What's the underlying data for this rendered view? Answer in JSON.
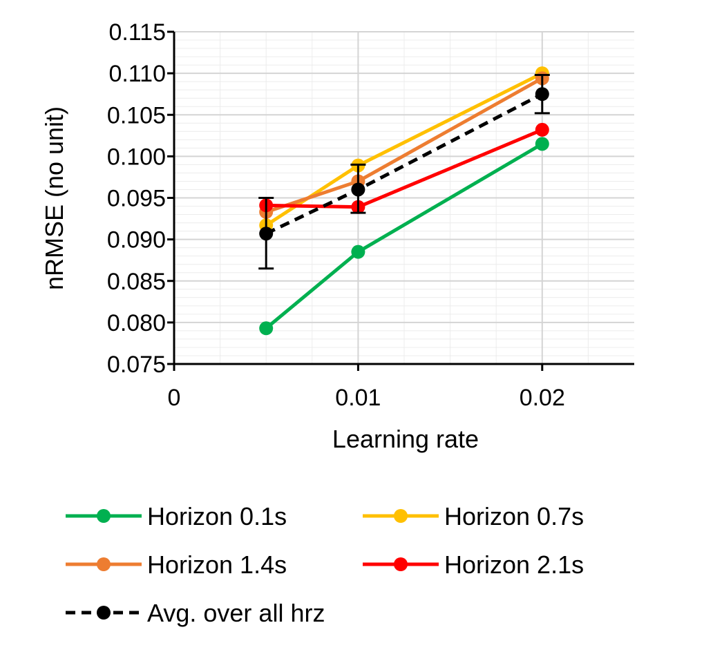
{
  "chart_data": {
    "type": "line",
    "title": "",
    "xlabel": "Learning rate",
    "ylabel": "nRMSE (no unit)",
    "xlim": [
      0,
      0.025
    ],
    "ylim": [
      0.075,
      0.115
    ],
    "x_ticks": [
      0,
      0.01,
      0.02
    ],
    "x_tick_labels": [
      "0",
      "0.01",
      "0.02"
    ],
    "y_ticks": [
      0.075,
      0.08,
      0.085,
      0.09,
      0.095,
      0.1,
      0.105,
      0.11,
      0.115
    ],
    "y_tick_labels": [
      "0.075",
      "0.080",
      "0.085",
      "0.090",
      "0.095",
      "0.100",
      "0.105",
      "0.110",
      "0.115"
    ],
    "x_minor_step": 0.0025,
    "y_minor_step": 0.001,
    "grid": true,
    "legend_position": "bottom",
    "x": [
      0.005,
      0.01,
      0.02
    ],
    "series": [
      {
        "name": "Horizon 0.1s",
        "color": "#00b050",
        "dashed": false,
        "values": [
          0.0793,
          0.0885,
          0.1015
        ]
      },
      {
        "name": "Horizon 0.7s",
        "color": "#ffc000",
        "dashed": false,
        "values": [
          0.0917,
          0.0989,
          0.11
        ]
      },
      {
        "name": "Horizon 1.4s",
        "color": "#ed7d31",
        "dashed": false,
        "values": [
          0.0933,
          0.097,
          0.1094
        ]
      },
      {
        "name": "Horizon 2.1s",
        "color": "#ff0000",
        "dashed": false,
        "values": [
          0.0941,
          0.0939,
          0.1032
        ]
      },
      {
        "name": "Avg. over all hrz",
        "color": "#000000",
        "dashed": true,
        "values": [
          0.0907,
          0.096,
          0.1075
        ],
        "error_low": [
          0.0865,
          0.0932,
          0.1052
        ],
        "error_high": [
          0.095,
          0.099,
          0.1098
        ]
      }
    ]
  }
}
